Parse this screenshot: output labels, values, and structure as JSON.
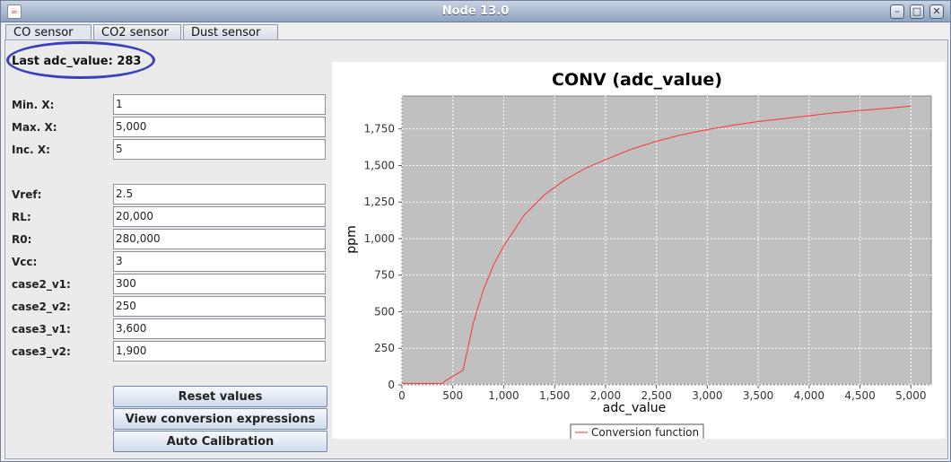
{
  "window": {
    "title": "Node 13.0"
  },
  "tabs": [
    {
      "label": "CO sensor",
      "active": true
    },
    {
      "label": "CO2 sensor",
      "active": false
    },
    {
      "label": "Dust sensor",
      "active": false
    }
  ],
  "adc": {
    "label": "Last adc_value: 283"
  },
  "fields": [
    {
      "label": "Min. X:",
      "value": "1"
    },
    {
      "label": "Max. X:",
      "value": "5,000"
    },
    {
      "label": "Inc. X:",
      "value": "5"
    },
    {
      "label": "Vref:",
      "value": "2.5"
    },
    {
      "label": "RL:",
      "value": "20,000"
    },
    {
      "label": "R0:",
      "value": "280,000"
    },
    {
      "label": "Vcc:",
      "value": "3"
    },
    {
      "label": "case2_v1:",
      "value": "300"
    },
    {
      "label": "case2_v2:",
      "value": "250"
    },
    {
      "label": "case3_v1:",
      "value": "3,600"
    },
    {
      "label": "case3_v2:",
      "value": "1,900"
    }
  ],
  "buttons": {
    "reset": "Reset values",
    "view": "View conversion expressions",
    "calibrate": "Auto Calibration"
  },
  "colors": {
    "plot_bg": "#c0c0c0",
    "series": "#ff3333",
    "annotation": "#3a3fbf"
  },
  "chart_data": {
    "type": "line",
    "title": "CONV (adc_value)",
    "xlabel": "adc_value",
    "ylabel": "ppm",
    "xlim": [
      0,
      5200
    ],
    "ylim": [
      0,
      1975
    ],
    "xticks": [
      "0",
      "500",
      "1,000",
      "1,500",
      "2,000",
      "2,500",
      "3,000",
      "3,500",
      "4,000",
      "4,500",
      "5,000"
    ],
    "yticks": [
      "0",
      "250",
      "500",
      "750",
      "1,000",
      "1,250",
      "1,500",
      "1,750"
    ],
    "grid": true,
    "legend_position": "bottom",
    "series": [
      {
        "name": "Conversion function",
        "x": [
          1,
          400,
          420,
          600,
          650,
          700,
          800,
          900,
          1000,
          1200,
          1400,
          1600,
          1800,
          2000,
          2250,
          2500,
          2750,
          3000,
          3250,
          3500,
          3750,
          4000,
          4250,
          4500,
          4750,
          5000
        ],
        "y": [
          10,
          10,
          25,
          100,
          260,
          420,
          650,
          820,
          950,
          1160,
          1300,
          1400,
          1480,
          1540,
          1610,
          1665,
          1710,
          1745,
          1775,
          1800,
          1820,
          1840,
          1860,
          1875,
          1890,
          1905
        ]
      }
    ]
  }
}
